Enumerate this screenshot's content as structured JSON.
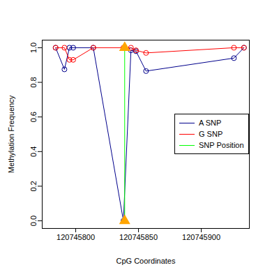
{
  "chart_data": {
    "type": "line",
    "x_label": "CpG Coordinates",
    "y_label": "Methylation Frequency",
    "xlim": [
      120745773.3,
      120745938.3
    ],
    "xticks": [
      120745800,
      120745850,
      120745900
    ],
    "ylim": [
      -0.044,
      1.044
    ],
    "yticks": [
      {
        "value": 0,
        "label": "0.0"
      },
      {
        "value": 0.2,
        "label": "0.2"
      },
      {
        "value": 0.4,
        "label": "0.4"
      },
      {
        "value": 0.6,
        "label": "0.6"
      },
      {
        "value": 0.8,
        "label": "0.8"
      },
      {
        "value": 1,
        "label": "1.0"
      }
    ],
    "legend": "right",
    "series": [
      {
        "name": "A SNP",
        "color": "#00008B",
        "marker": "circle",
        "line_style": "solid",
        "x": [
          120745784,
          120745791,
          120745795,
          120745798,
          120745814,
          120745838,
          120745844,
          120745848,
          120745856,
          120745926,
          120745934
        ],
        "values": [
          1.0,
          0.875,
          1.0,
          1.0,
          1.0,
          0.0,
          0.985,
          0.98,
          0.865,
          0.94,
          1.0
        ]
      },
      {
        "name": "G SNP",
        "color": "#FF0000",
        "marker": "circle",
        "line_style": "solid",
        "x": [
          120745784,
          120745791,
          120745795,
          120745798,
          120745814,
          120745838,
          120745844,
          120745848,
          120745856,
          120745926,
          120745934
        ],
        "values": [
          1.0,
          1.0,
          0.93,
          0.93,
          1.0,
          1.0,
          1.0,
          0.985,
          0.97,
          1.0,
          1.0
        ]
      },
      {
        "name": "SNP Position",
        "color": "#00FF00",
        "marker": "triangle",
        "line_style": "solid",
        "x": [
          120745839,
          120745839
        ],
        "values": [
          0,
          1
        ]
      }
    ]
  }
}
